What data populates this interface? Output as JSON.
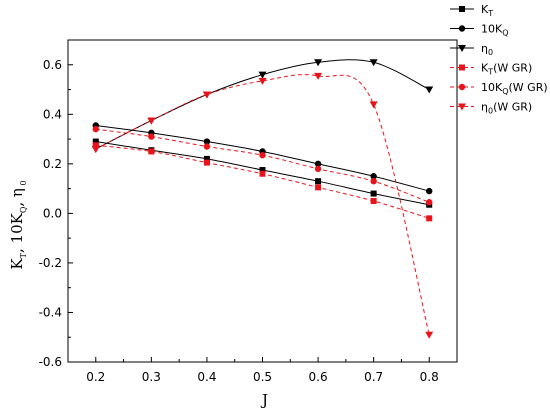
{
  "chart_data": {
    "type": "line",
    "xlabel": "J",
    "ylabel": "K",
    "ylabel_parts": [
      "K",
      "T",
      ", 10K",
      "Q",
      ", η",
      " 0"
    ],
    "xlim": [
      0.15,
      0.85
    ],
    "ylim": [
      -0.6,
      0.7
    ],
    "xticks": [
      "0.2",
      "0.3",
      "0.4",
      "0.5",
      "0.6",
      "0.7",
      "0.8"
    ],
    "yticks": [
      "-0.6",
      "-0.4",
      "-0.2",
      "0.0",
      "0.2",
      "0.4",
      "0.6"
    ],
    "x": [
      0.2,
      0.3,
      0.4,
      0.5,
      0.6,
      0.7,
      0.8
    ],
    "grid": false,
    "legend_position": "top-right",
    "series": [
      {
        "name": "K",
        "sub": "T",
        "suffix": "",
        "values": [
          0.29,
          0.255,
          0.22,
          0.175,
          0.13,
          0.08,
          0.035
        ],
        "color": "#000000",
        "marker": "square",
        "dash": false
      },
      {
        "name": "10K",
        "sub": "Q",
        "suffix": "",
        "values": [
          0.355,
          0.325,
          0.29,
          0.25,
          0.2,
          0.15,
          0.09
        ],
        "color": "#000000",
        "marker": "circle",
        "dash": false
      },
      {
        "name": "η",
        "sub": "0",
        "suffix": "",
        "values": [
          0.26,
          0.375,
          0.48,
          0.56,
          0.61,
          0.61,
          0.5
        ],
        "color": "#000000",
        "marker": "triangle-down",
        "dash": false
      },
      {
        "name": "K",
        "sub": "T",
        "suffix": "(W GR)",
        "values": [
          0.275,
          0.25,
          0.205,
          0.16,
          0.105,
          0.05,
          -0.02
        ],
        "color": "#e8141b",
        "marker": "square",
        "dash": true
      },
      {
        "name": "10K",
        "sub": "Q",
        "suffix": "(W GR)",
        "values": [
          0.34,
          0.31,
          0.27,
          0.235,
          0.18,
          0.13,
          0.045
        ],
        "color": "#e8141b",
        "marker": "circle",
        "dash": true
      },
      {
        "name": "η",
        "sub": "0",
        "suffix": "(W GR)",
        "values": [
          0.26,
          0.375,
          0.48,
          0.535,
          0.555,
          0.44,
          -0.49
        ],
        "color": "#e8141b",
        "marker": "triangle-down",
        "dash": true
      }
    ]
  }
}
